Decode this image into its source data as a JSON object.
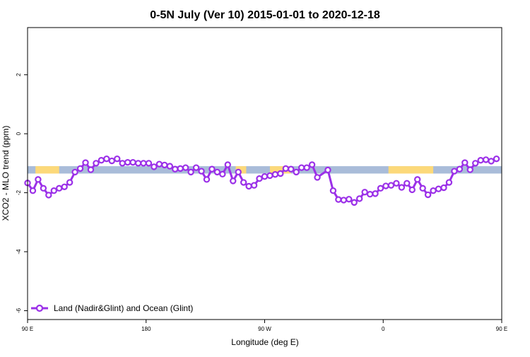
{
  "chart_data": {
    "type": "line",
    "title": "0-5N July (Ver 10)   2015-01-01 to 2020-12-18",
    "xlabel": "Longitude (deg E)",
    "ylabel": "XCO2 - MLO trend (ppm)",
    "xlim": [
      90,
      450
    ],
    "ylim": [
      -6.3,
      3.6
    ],
    "x_ticks": [
      {
        "value": 90,
        "label": "90 E"
      },
      {
        "value": 180,
        "label": "180"
      },
      {
        "value": 270,
        "label": "90 W"
      },
      {
        "value": 360,
        "label": "0"
      },
      {
        "value": 450,
        "label": "90 E"
      },
      {
        "value": 540,
        "label": "180"
      }
    ],
    "y_ticks": [
      {
        "value": 2,
        "label": "2"
      },
      {
        "value": 0,
        "label": "0"
      },
      {
        "value": -2,
        "label": "-2"
      },
      {
        "value": -4,
        "label": "-4"
      },
      {
        "value": -6,
        "label": "-6"
      }
    ],
    "band": {
      "y_range": [
        -1.35,
        -1.1
      ],
      "ocean_color": "#a9bcd9",
      "land_color": "#fcd97a",
      "land_segments": [
        [
          96,
          114
        ],
        [
          248,
          256
        ],
        [
          274,
          290
        ],
        [
          364,
          398
        ],
        [
          464,
          474
        ],
        [
          478,
          488
        ]
      ]
    },
    "series": [
      {
        "name": "Land (Nadir&Glint) and Ocean (Glint)",
        "color": "#9b30e8",
        "points": [
          [
            90,
            -1.67
          ],
          [
            94,
            -1.93
          ],
          [
            98,
            -1.55
          ],
          [
            102,
            -1.85
          ],
          [
            106,
            -2.08
          ],
          [
            110,
            -1.93
          ],
          [
            114,
            -1.85
          ],
          [
            118,
            -1.8
          ],
          [
            122,
            -1.65
          ],
          [
            126,
            -1.3
          ],
          [
            130,
            -1.18
          ],
          [
            134,
            -0.98
          ],
          [
            138,
            -1.22
          ],
          [
            142,
            -1.0
          ],
          [
            146,
            -0.9
          ],
          [
            150,
            -0.85
          ],
          [
            154,
            -0.92
          ],
          [
            158,
            -0.85
          ],
          [
            162,
            -1.0
          ],
          [
            166,
            -0.97
          ],
          [
            170,
            -0.97
          ],
          [
            174,
            -1.0
          ],
          [
            178,
            -1.0
          ],
          [
            182,
            -1.0
          ],
          [
            186,
            -1.12
          ],
          [
            190,
            -1.03
          ],
          [
            194,
            -1.06
          ],
          [
            198,
            -1.1
          ],
          [
            202,
            -1.2
          ],
          [
            206,
            -1.18
          ],
          [
            210,
            -1.15
          ],
          [
            214,
            -1.3
          ],
          [
            218,
            -1.15
          ],
          [
            222,
            -1.27
          ],
          [
            226,
            -1.55
          ],
          [
            230,
            -1.2
          ],
          [
            234,
            -1.3
          ],
          [
            238,
            -1.37
          ],
          [
            242,
            -1.05
          ],
          [
            246,
            -1.6
          ],
          [
            250,
            -1.3
          ],
          [
            254,
            -1.65
          ],
          [
            258,
            -1.78
          ],
          [
            262,
            -1.75
          ],
          [
            266,
            -1.52
          ],
          [
            270,
            -1.45
          ],
          [
            274,
            -1.42
          ],
          [
            278,
            -1.38
          ],
          [
            282,
            -1.35
          ],
          [
            286,
            -1.18
          ],
          [
            290,
            -1.2
          ],
          [
            294,
            -1.3
          ],
          [
            298,
            -1.15
          ],
          [
            302,
            -1.15
          ],
          [
            306,
            -1.05
          ],
          [
            310,
            -1.48
          ],
          [
            318,
            -1.23
          ],
          [
            322,
            -1.93
          ],
          [
            326,
            -2.23
          ],
          [
            330,
            -2.25
          ],
          [
            334,
            -2.22
          ],
          [
            338,
            -2.33
          ],
          [
            342,
            -2.2
          ],
          [
            346,
            -1.98
          ],
          [
            350,
            -2.05
          ],
          [
            354,
            -2.03
          ],
          [
            358,
            -1.85
          ],
          [
            362,
            -1.77
          ],
          [
            366,
            -1.75
          ],
          [
            370,
            -1.68
          ],
          [
            374,
            -1.82
          ],
          [
            378,
            -1.68
          ],
          [
            382,
            -1.9
          ],
          [
            386,
            -1.55
          ],
          [
            390,
            -1.85
          ],
          [
            394,
            -2.07
          ],
          [
            398,
            -1.93
          ],
          [
            402,
            -1.87
          ],
          [
            406,
            -1.83
          ],
          [
            410,
            -1.65
          ],
          [
            414,
            -1.27
          ],
          [
            418,
            -1.2
          ],
          [
            422,
            -0.98
          ],
          [
            426,
            -1.22
          ],
          [
            430,
            -1.0
          ],
          [
            434,
            -0.9
          ],
          [
            438,
            -0.88
          ],
          [
            442,
            -0.93
          ],
          [
            446,
            -0.85
          ]
        ]
      }
    ],
    "legend": {
      "position": "bottom-left"
    },
    "grid": false
  }
}
